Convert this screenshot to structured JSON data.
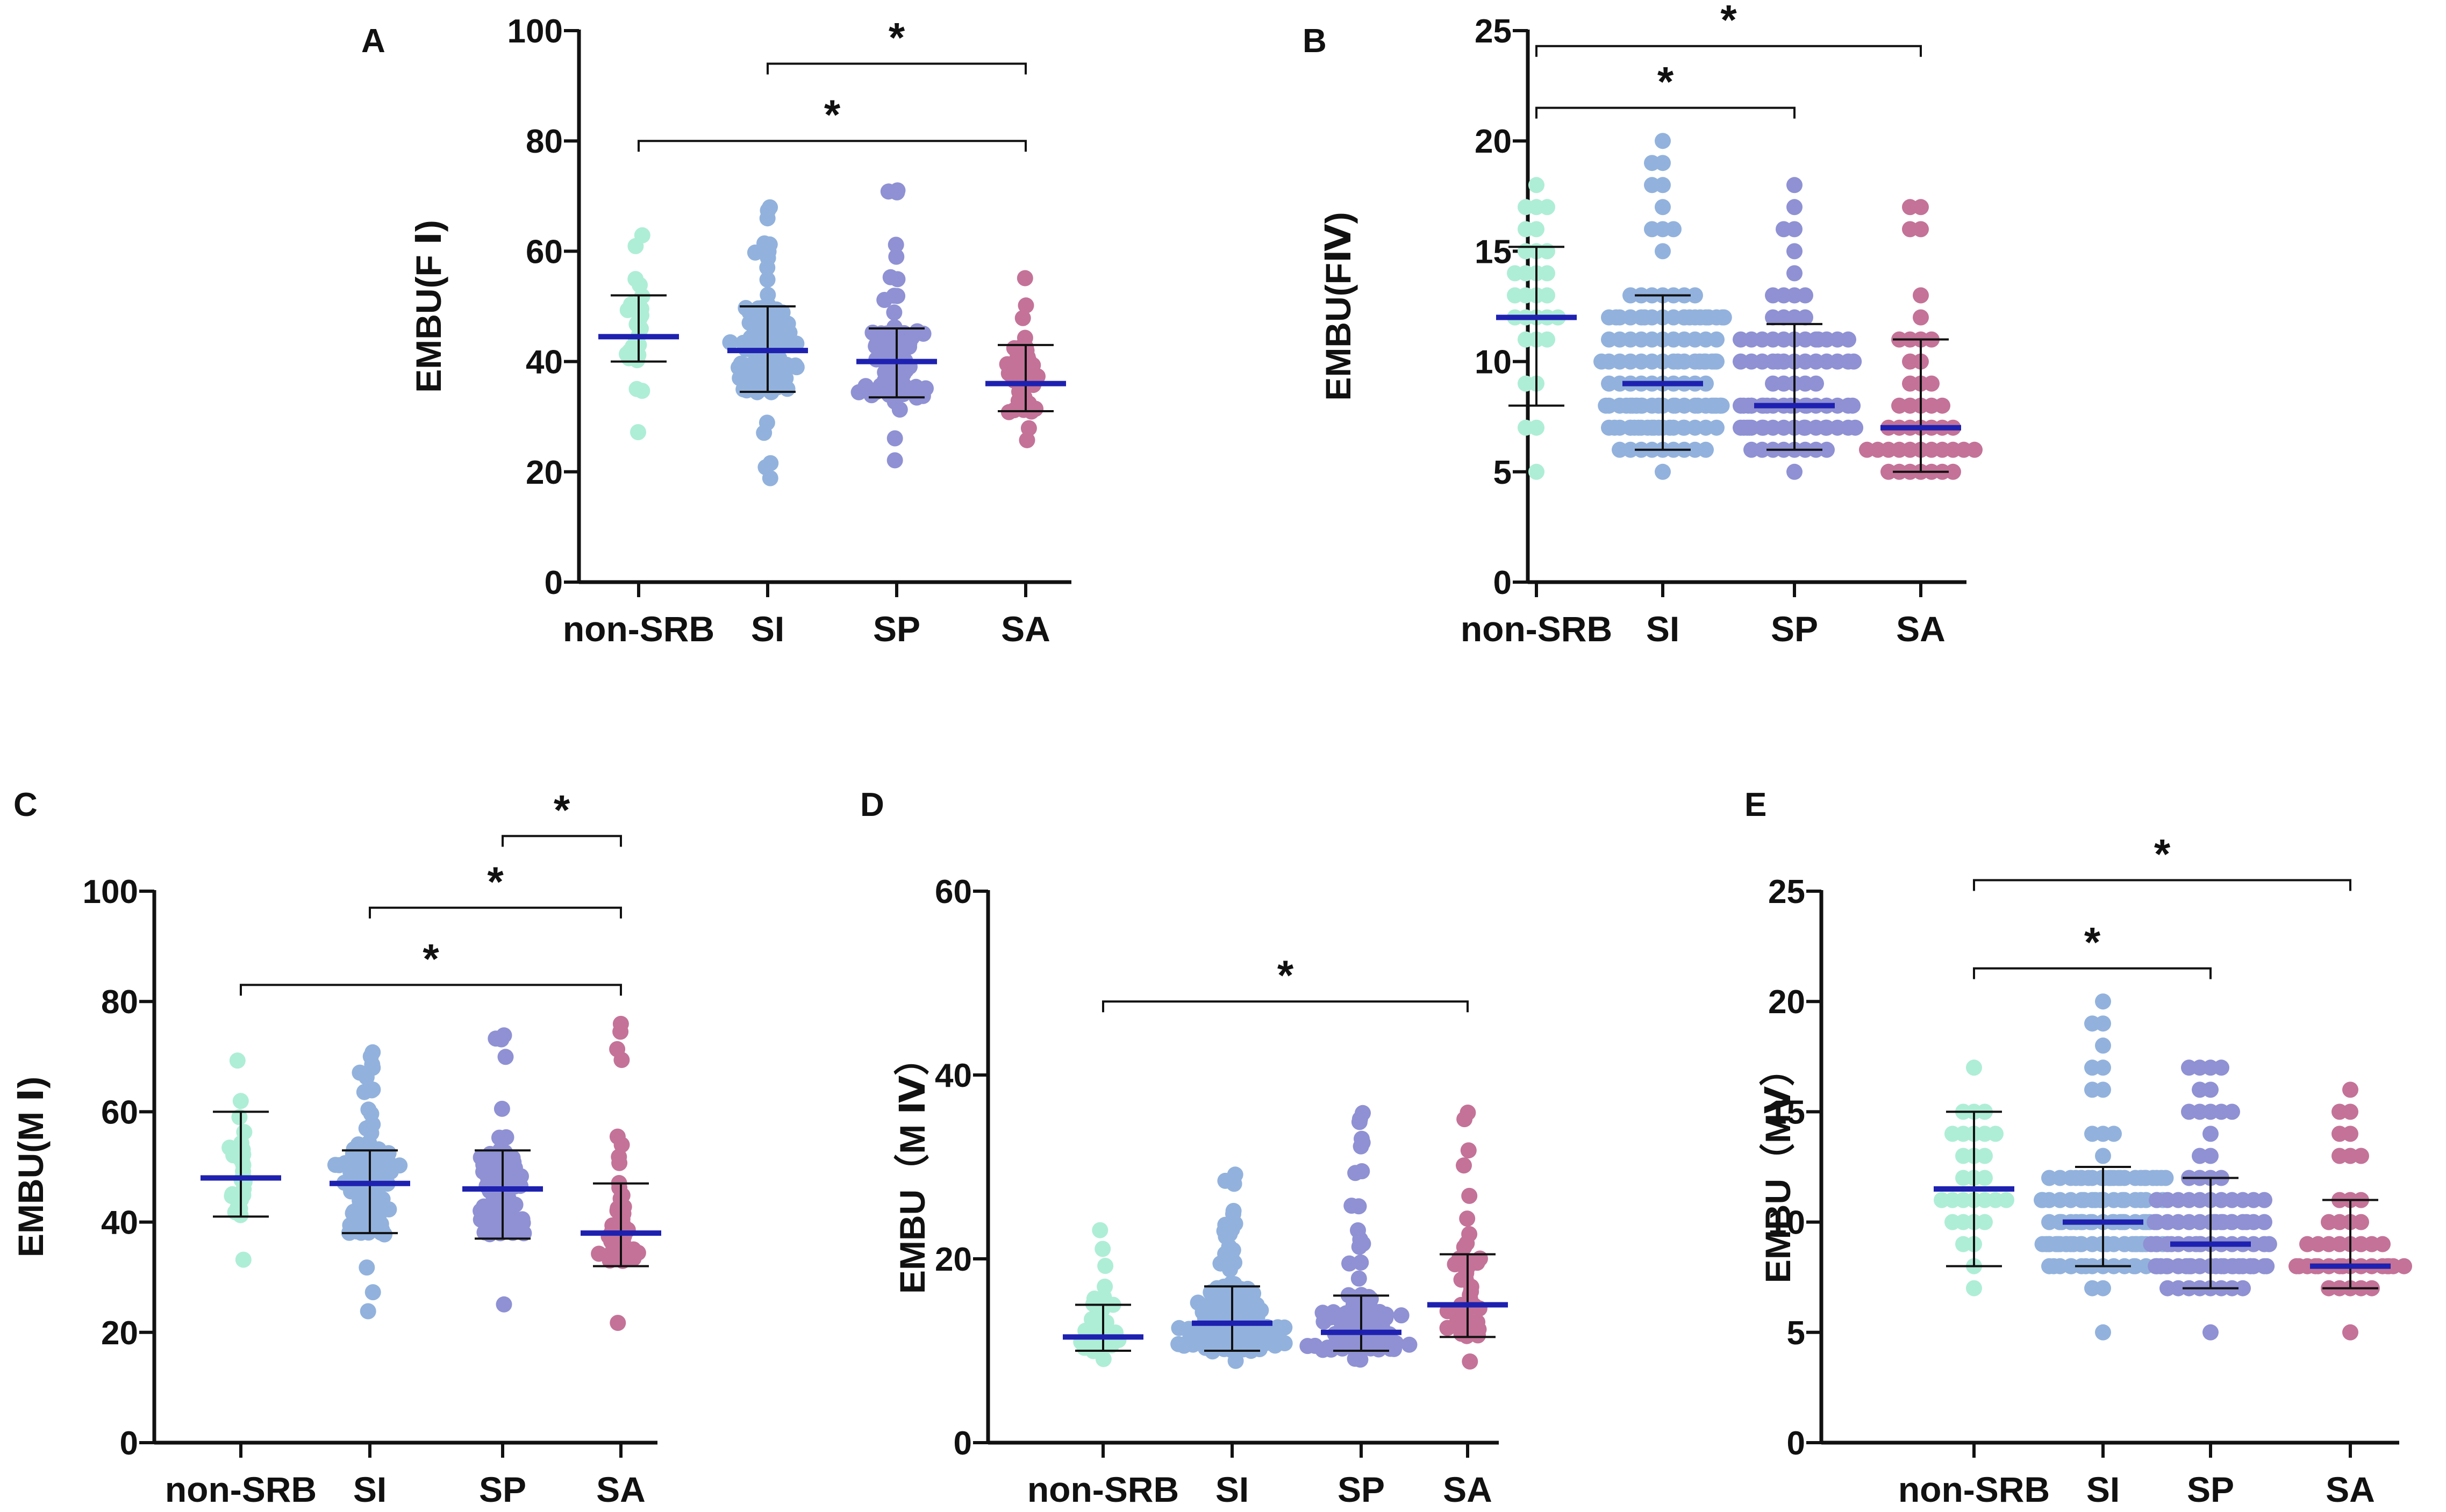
{
  "figure": {
    "panels_count": 5
  },
  "colors": {
    "group": [
      "#aeeed6",
      "#92b2dd",
      "#8f91d4",
      "#c47298"
    ],
    "median_line": "#1e21b0",
    "axis": "#111111",
    "errorbar": "#111111"
  },
  "chart_data": [
    {
      "panel": "A",
      "type": "scatter",
      "title": "",
      "ylabel": "EMBU(F Ⅰ)",
      "xlabel": "",
      "categories": [
        "non-SRB",
        "SI",
        "SP",
        "SA"
      ],
      "ylim": [
        0,
        100
      ],
      "yticks": [
        0,
        20,
        40,
        60,
        80,
        100
      ],
      "median": [
        44.5,
        42,
        40,
        36
      ],
      "errorbar_low": [
        40,
        34.5,
        33.5,
        31
      ],
      "errorbar_high": [
        52,
        50,
        46,
        43
      ],
      "data_range": [
        [
          27,
          63
        ],
        [
          19,
          68
        ],
        [
          22,
          71
        ],
        [
          26,
          55
        ]
      ],
      "n_points": [
        30,
        130,
        95,
        45
      ],
      "significance": [
        {
          "from": "SI",
          "to": "SA",
          "label": "*",
          "y": 94
        },
        {
          "from": "non-SRB",
          "to": "SA",
          "label": "*",
          "y": 80
        }
      ]
    },
    {
      "panel": "B",
      "type": "scatter",
      "title": "",
      "ylabel": "EMBU(FⅣ)",
      "xlabel": "",
      "categories": [
        "non-SRB",
        "SI",
        "SP",
        "SA"
      ],
      "ylim": [
        0,
        25
      ],
      "yticks": [
        0,
        5,
        10,
        15,
        20,
        25
      ],
      "median": [
        12,
        9,
        8,
        7
      ],
      "errorbar_low": [
        8,
        6,
        6,
        5
      ],
      "errorbar_high": [
        15.2,
        13,
        11.7,
        11
      ],
      "data_range": [
        [
          5,
          18
        ],
        [
          5,
          20
        ],
        [
          5,
          18
        ],
        [
          5,
          17
        ]
      ],
      "n_points": [
        30,
        130,
        95,
        45
      ],
      "significance": [
        {
          "from": "non-SRB",
          "to": "SA",
          "label": "*",
          "y": 24.3
        },
        {
          "from": "non-SRB",
          "to": "SP",
          "label": "*",
          "y": 21.5
        }
      ]
    },
    {
      "panel": "C",
      "type": "scatter",
      "title": "",
      "ylabel": "EMBU(M Ⅰ)",
      "xlabel": "",
      "categories": [
        "non-SRB",
        "SI",
        "SP",
        "SA"
      ],
      "ylim": [
        0,
        100
      ],
      "yticks": [
        0,
        20,
        40,
        60,
        80,
        100
      ],
      "median": [
        48,
        47,
        46,
        38
      ],
      "errorbar_low": [
        41,
        38,
        37,
        32
      ],
      "errorbar_high": [
        60,
        53,
        53,
        47
      ],
      "data_range": [
        [
          33,
          69
        ],
        [
          24,
          71
        ],
        [
          25,
          74
        ],
        [
          22,
          76
        ]
      ],
      "n_points": [
        30,
        130,
        95,
        45
      ],
      "significance": [
        {
          "from": "SP",
          "to": "SA",
          "label": "*",
          "y": 110
        },
        {
          "from": "SI",
          "to": "SA",
          "label": "*",
          "y": 97
        },
        {
          "from": "non-SRB",
          "to": "SA",
          "label": "*",
          "y": 83
        }
      ]
    },
    {
      "panel": "D",
      "type": "scatter",
      "title": "",
      "ylabel": "EMBU（M Ⅳ）",
      "xlabel": "",
      "categories": [
        "non-SRB",
        "SI",
        "SP",
        "SA"
      ],
      "ylim": [
        0,
        60
      ],
      "yticks": [
        0,
        20,
        40,
        60
      ],
      "median": [
        11.5,
        13,
        12,
        15
      ],
      "errorbar_low": [
        10,
        10,
        10,
        11.5
      ],
      "errorbar_high": [
        15,
        17,
        16,
        20.5
      ],
      "data_range": [
        [
          9,
          23
        ],
        [
          9,
          29
        ],
        [
          9,
          36
        ],
        [
          9,
          36
        ]
      ],
      "n_points": [
        30,
        130,
        95,
        45
      ],
      "significance": [
        {
          "from": "non-SRB",
          "to": "SA",
          "label": "*",
          "y": 48
        }
      ]
    },
    {
      "panel": "E",
      "type": "scatter",
      "title": "",
      "ylabel": "EMBU（MⅤ）",
      "xlabel": "",
      "categories": [
        "non-SRB",
        "SI",
        "SP",
        "SA"
      ],
      "ylim": [
        0,
        25
      ],
      "yticks": [
        0,
        5,
        10,
        15,
        20,
        25
      ],
      "median": [
        11.5,
        10,
        9,
        8
      ],
      "errorbar_low": [
        8,
        8,
        7,
        7
      ],
      "errorbar_high": [
        15,
        12.5,
        12,
        11
      ],
      "data_range": [
        [
          7,
          17
        ],
        [
          5,
          20
        ],
        [
          5,
          17
        ],
        [
          5,
          16
        ]
      ],
      "n_points": [
        30,
        130,
        95,
        45
      ],
      "significance": [
        {
          "from": "non-SRB",
          "to": "SA",
          "label": "*",
          "y": 25.5
        },
        {
          "from": "non-SRB",
          "to": "SP",
          "label": "*",
          "y": 21.5
        }
      ]
    }
  ]
}
